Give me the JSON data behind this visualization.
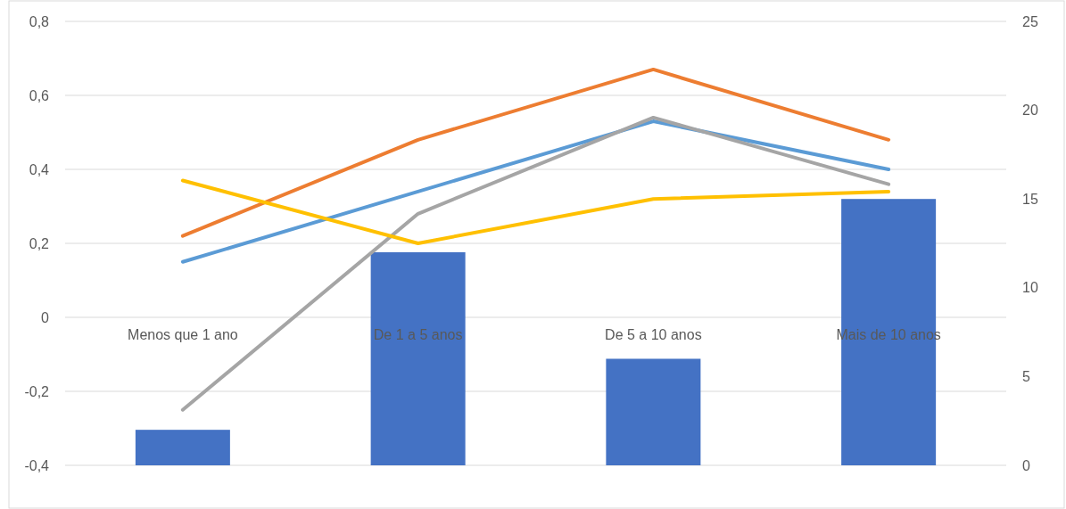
{
  "chart_data": {
    "type": "bar",
    "categories": [
      "Menos que 1 ano",
      "De 1 a 5 anos",
      "De 5 a 10 anos",
      "Mais de 10 anos"
    ],
    "ylim": [
      -0.4,
      0.8
    ],
    "yticks": [
      {
        "value": -0.4,
        "label": "-0,4"
      },
      {
        "value": -0.2,
        "label": "-0,2"
      },
      0,
      {
        "value": 0.2,
        "label": "0,2"
      },
      {
        "value": 0.4,
        "label": "0,4"
      },
      {
        "value": 0.6,
        "label": "0,6"
      },
      {
        "value": 0.8,
        "label": "0,8"
      }
    ],
    "y2lim": [
      0,
      25
    ],
    "y2ticks": [
      0,
      5,
      10,
      15,
      20,
      25
    ],
    "grid": "y",
    "series": [
      {
        "axis": "y2",
        "color": "#4472c4",
        "values": [
          2,
          12,
          6,
          15
        ]
      },
      {
        "type": "line",
        "axis": "y",
        "color": "#ed7d31",
        "values": [
          0.22,
          0.48,
          0.67,
          0.48
        ]
      },
      {
        "type": "line",
        "axis": "y",
        "color": "#5b9bd5",
        "values": [
          0.15,
          0.34,
          0.53,
          0.4
        ]
      },
      {
        "type": "line",
        "axis": "y",
        "color": "#a5a5a5",
        "values": [
          -0.25,
          0.28,
          0.54,
          0.36
        ]
      },
      {
        "type": "line",
        "axis": "y",
        "color": "#ffc000",
        "values": [
          0.37,
          0.2,
          0.32,
          0.34
        ]
      }
    ]
  }
}
